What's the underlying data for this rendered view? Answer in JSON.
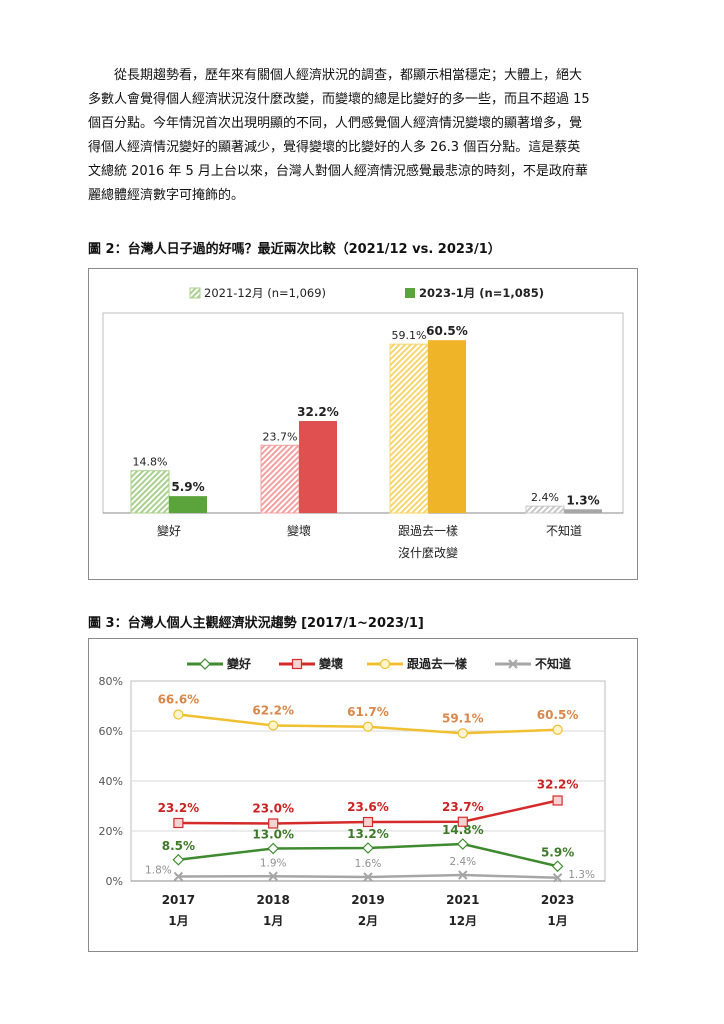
{
  "paragraph": {
    "lines": [
      "從長期趨勢看，歷年來有關個人經濟狀況的調查，都顯示相當穩定；大體上，絕大",
      "多數人會覺得個人經濟狀況沒什麼改變，而變壞的總是比變好的多一些，而且不超過 15",
      "個百分點。今年情況首次出現明顯的不同，人們感覺個人經濟情況變壞的顯著增多，覺",
      "得個人經濟情況變好的顯著減少，覺得變壞的比變好的人多 26.3 個百分點。這是蔡英",
      "文總統 2016 年 5 月上台以來，台灣人對個人經濟情況感覺最悲涼的時刻，不是政府華",
      "麗總體經濟數字可掩飾的。"
    ]
  },
  "figure2": {
    "caption": "圖 2：台灣人日子過的好嗎？最近兩次比較（2021/12 vs. 2023/1）"
  },
  "figure3": {
    "caption": "圖 3：台灣人個人主觀經濟狀況趨勢  [2017/1~2023/1]"
  },
  "chart_data": [
    {
      "type": "bar",
      "categories": [
        [
          "變好"
        ],
        [
          "變壞"
        ],
        [
          "跟過去一樣",
          "沒什麼改變"
        ],
        [
          "不知道"
        ]
      ],
      "series": [
        {
          "name": "2021-12月 (n=1,069)",
          "values": [
            14.8,
            23.7,
            59.1,
            2.4
          ],
          "labels": [
            "14.8%",
            "23.7%",
            "59.1%",
            "2.4%"
          ],
          "style": "hatched"
        },
        {
          "name": "2023-1月 (n=1,085)",
          "values": [
            5.9,
            32.2,
            60.5,
            1.3
          ],
          "labels": [
            "5.9%",
            "32.2%",
            "60.5%",
            "1.3%"
          ],
          "style": "solid"
        }
      ],
      "category_colors": {
        "light": [
          "#a9d08e",
          "#f4a0a0",
          "#f9d56e",
          "#c8c8c8"
        ],
        "dark": [
          "#5ba33b",
          "#e05050",
          "#f0b429",
          "#a6a6a6"
        ]
      },
      "ylim": [
        0,
        70
      ],
      "legend_position": "top"
    },
    {
      "type": "line",
      "x_labels": [
        [
          "2017",
          "1月"
        ],
        [
          "2018",
          "1月"
        ],
        [
          "2019",
          "2月"
        ],
        [
          "2021",
          "12月"
        ],
        [
          "2023",
          "1月"
        ]
      ],
      "y_ticks": [
        "0%",
        "20%",
        "40%",
        "60%",
        "80%"
      ],
      "ylim": [
        0,
        80
      ],
      "series": [
        {
          "name": "變好",
          "values": [
            8.5,
            13.0,
            13.2,
            14.8,
            5.9
          ],
          "labels": [
            "8.5%",
            "13.0%",
            "13.2%",
            "14.8%",
            "5.9%"
          ],
          "color": "#3e8a2e",
          "label_color": "#3e7a2a",
          "marker": "diamond"
        },
        {
          "name": "變壞",
          "values": [
            23.2,
            23.0,
            23.6,
            23.7,
            32.2
          ],
          "labels": [
            "23.2%",
            "23.0%",
            "23.6%",
            "23.7%",
            "32.2%"
          ],
          "color": "#d42a2a",
          "label_color": "#cc2222",
          "marker": "square"
        },
        {
          "name": "跟過去一樣",
          "values": [
            66.6,
            62.2,
            61.7,
            59.1,
            60.5
          ],
          "labels": [
            "66.6%",
            "62.2%",
            "61.7%",
            "59.1%",
            "60.5%"
          ],
          "color": "#f0c030",
          "label_color": "#d9874a",
          "marker": "circle"
        },
        {
          "name": "不知道",
          "values": [
            1.8,
            1.9,
            1.6,
            2.4,
            1.3
          ],
          "labels": [
            "1.8%",
            "1.9%",
            "1.6%",
            "2.4%",
            "1.3%"
          ],
          "color": "#a6a6a6",
          "label_color": "#909090",
          "marker": "x"
        }
      ],
      "grid": true,
      "legend_position": "top"
    }
  ]
}
